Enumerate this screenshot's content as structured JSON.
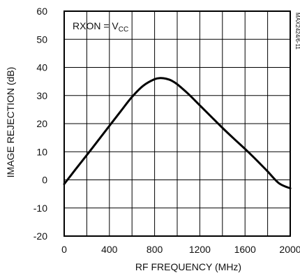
{
  "chart_data": {
    "type": "line",
    "title": "",
    "xlabel": "RF FREQUENCY (MHz)",
    "ylabel": "IMAGE REJECTION (dB)",
    "xlim": [
      0,
      2000
    ],
    "ylim": [
      -20,
      60
    ],
    "x_ticks": [
      0,
      400,
      800,
      1200,
      1600,
      2000
    ],
    "y_ticks": [
      -20,
      -10,
      0,
      10,
      20,
      30,
      40,
      50,
      60
    ],
    "x_tick_labels": [
      "0",
      "400",
      "800",
      "1200",
      "1600",
      "2000"
    ],
    "y_tick_labels": [
      "-20",
      "-10",
      "0",
      "10",
      "20",
      "30",
      "40",
      "50",
      "60"
    ],
    "grid": true,
    "annotation": {
      "main": "RXON = V",
      "sub": "CC"
    },
    "part_number": "MAX2424/6-11",
    "series": [
      {
        "color": "#000000",
        "x": [
          0,
          100,
          200,
          300,
          400,
          500,
          600,
          700,
          800,
          850,
          900,
          950,
          1000,
          1100,
          1200,
          1300,
          1400,
          1500,
          1600,
          1700,
          1800,
          1900,
          2000
        ],
        "y": [
          -1.5,
          3.7,
          8.8,
          14.0,
          19.2,
          24.4,
          29.5,
          33.5,
          35.8,
          36.2,
          36.0,
          35.3,
          34.0,
          30.5,
          26.5,
          22.5,
          18.5,
          14.7,
          11.0,
          7.1,
          3.0,
          -1.2,
          -3.0
        ]
      }
    ]
  }
}
